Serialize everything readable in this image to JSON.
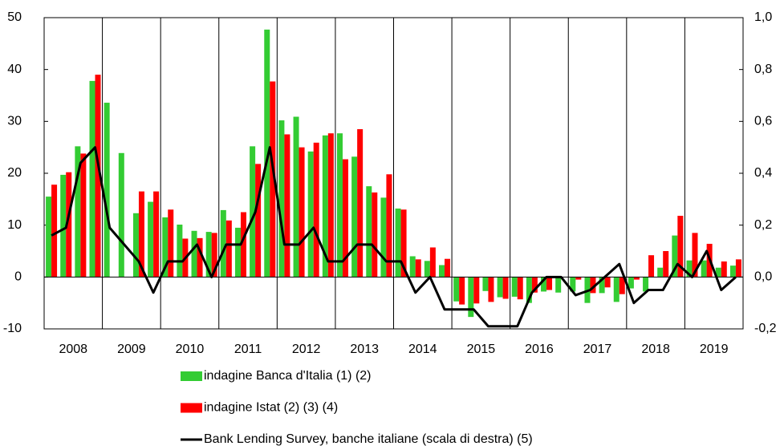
{
  "chart_data": {
    "type": "bar",
    "categories": [
      null,
      "2008",
      null,
      null,
      null,
      "2009",
      null,
      null,
      null,
      "2010",
      null,
      null,
      null,
      "2011",
      null,
      null,
      null,
      "2012",
      null,
      null,
      null,
      "2013",
      null,
      null,
      null,
      "2014",
      null,
      null,
      null,
      "2015",
      null,
      null,
      null,
      "2016",
      null,
      null,
      null,
      "2017",
      null,
      null,
      null,
      "2018",
      null,
      null,
      null,
      "2019",
      null,
      null
    ],
    "series": [
      {
        "name": "indagine Banca d'Italia (1) (2)",
        "color": "#33cc33",
        "type": "bar",
        "values": [
          15.5,
          19.7,
          25.2,
          37.8,
          33.6,
          23.9,
          12.3,
          14.5,
          11.5,
          10.1,
          8.9,
          8.7,
          12.9,
          9.5,
          25.2,
          47.7,
          30.2,
          30.9,
          24.2,
          27.3,
          27.7,
          23.2,
          17.5,
          15.3,
          13.2,
          4.0,
          3.1,
          2.3,
          -4.7,
          -7.7,
          -2.7,
          -3.9,
          -3.8,
          -5.0,
          -2.8,
          -3.0,
          -2.8,
          -5.0,
          -3.1,
          -4.8,
          -2.2,
          -2.8,
          1.8,
          8.0,
          3.2,
          3.2,
          1.8,
          2.2
        ]
      },
      {
        "name": "indagine Istat (2) (3) (4)",
        "color": "#ff0000",
        "type": "bar",
        "values": [
          17.8,
          20.2,
          23.8,
          39.0,
          null,
          null,
          16.5,
          16.5,
          13.0,
          7.4,
          7.5,
          8.5,
          10.9,
          12.5,
          21.8,
          37.7,
          27.5,
          25.0,
          25.9,
          27.7,
          22.7,
          28.5,
          16.3,
          19.8,
          13.0,
          3.4,
          5.7,
          3.5,
          -5.3,
          -5.1,
          -4.8,
          -4.2,
          -4.3,
          -3.0,
          -2.5,
          null,
          -0.5,
          -3.1,
          -2.0,
          -3.3,
          -0.5,
          4.2,
          5.0,
          11.8,
          8.5,
          6.4,
          3.0,
          3.4
        ]
      },
      {
        "name": "Bank Lending Survey, banche italiane (scala di destra) (5)",
        "color": "#000000",
        "type": "line",
        "axis": "y2",
        "values": [
          0.16,
          0.19,
          0.44,
          0.5,
          0.19,
          0.125,
          0.06,
          -0.06,
          0.06,
          0.06,
          0.125,
          0.0,
          0.125,
          0.125,
          0.25,
          0.5,
          0.125,
          0.125,
          0.19,
          0.06,
          0.06,
          0.125,
          0.125,
          0.06,
          0.06,
          -0.06,
          0.0,
          -0.125,
          -0.125,
          -0.125,
          -0.19,
          -0.19,
          -0.19,
          -0.06,
          0.0,
          0.0,
          -0.07,
          -0.05,
          0.0,
          0.05,
          -0.1,
          -0.05,
          -0.05,
          0.05,
          0.0,
          0.1,
          -0.05,
          0.0
        ]
      }
    ],
    "ylim": [
      -10,
      50
    ],
    "yticks": [
      -10,
      0,
      10,
      20,
      30,
      40,
      50
    ],
    "y2lim": [
      -0.2,
      1.0
    ],
    "y2ticks": [
      {
        "value": -0.2,
        "label": "-0,2"
      },
      {
        "value": 0,
        "label": "0,0"
      },
      {
        "value": 0.2,
        "label": "0,2"
      },
      {
        "value": 0.4,
        "label": "0,4"
      },
      {
        "value": 0.6,
        "label": "0,6"
      },
      {
        "value": 0.8,
        "label": "0,8"
      },
      {
        "value": 1.0,
        "label": "1,0"
      }
    ]
  }
}
